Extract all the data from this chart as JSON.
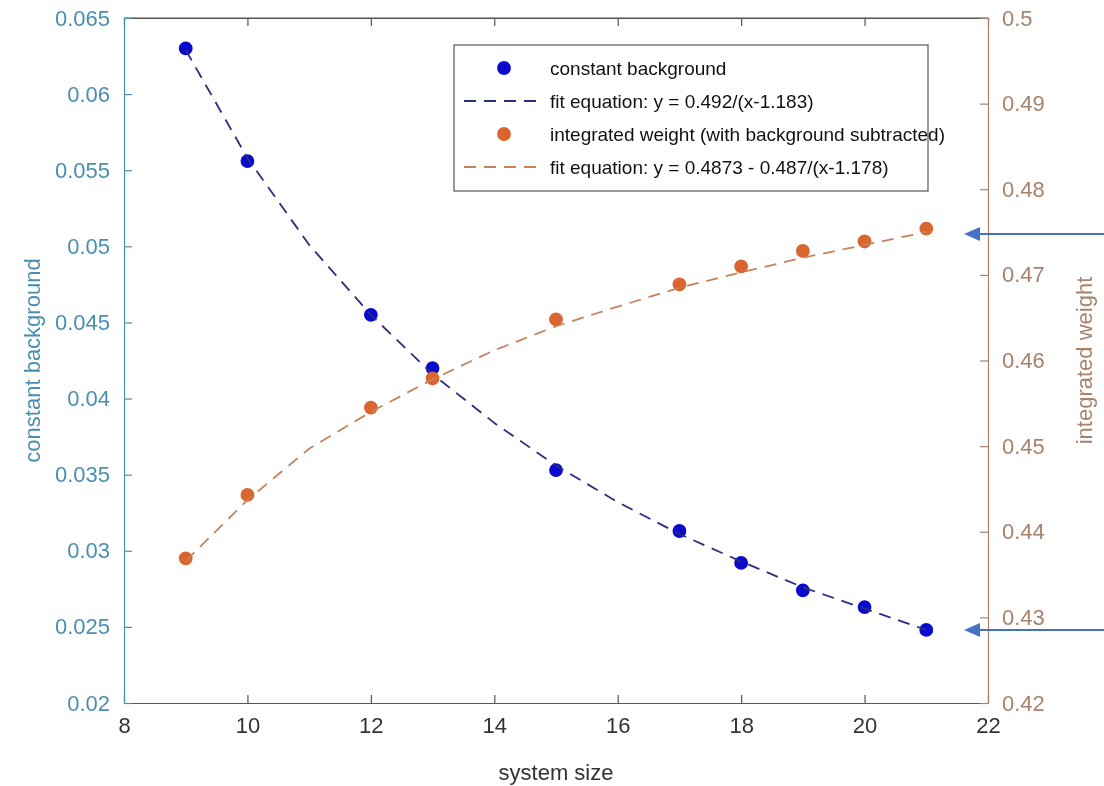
{
  "chart_data": {
    "type": "scatter",
    "xlabel": "system size",
    "ylabel": "constant background",
    "y2label": "integrated weight",
    "xlim": [
      8,
      22
    ],
    "xticks": [
      8,
      10,
      12,
      14,
      16,
      18,
      20,
      22
    ],
    "ylim": [
      0.02,
      0.065
    ],
    "yticks": [
      0.02,
      0.025,
      0.03,
      0.035,
      0.04,
      0.045,
      0.05,
      0.055,
      0.06,
      0.065
    ],
    "y2lim": [
      0.42,
      0.5
    ],
    "y2ticks": [
      0.42,
      0.43,
      0.44,
      0.45,
      0.46,
      0.47,
      0.48,
      0.49,
      0.5
    ],
    "grid": false,
    "legend": "top right",
    "series": [
      {
        "name": "constant background",
        "marker": "circle",
        "color": "#0a0acc",
        "x": [
          9,
          10,
          12,
          13,
          15,
          17,
          18,
          19,
          20,
          21
        ],
        "values": [
          0.063,
          0.0556,
          0.0455,
          0.042,
          0.0353,
          0.0313,
          0.0292,
          0.0274,
          0.0263,
          0.0248
        ]
      },
      {
        "name": "fit equation: y = 0.492/(x-1.183)",
        "type": "line",
        "line_style": "dashed",
        "color": "#27307f",
        "x": [
          9,
          10,
          11,
          12,
          13,
          14,
          15,
          16,
          17,
          18,
          19,
          20,
          21
        ],
        "values": [
          0.0629,
          0.0558,
          0.0501,
          0.0455,
          0.0416,
          0.0384,
          0.0356,
          0.0332,
          0.0311,
          0.0293,
          0.0276,
          0.0262,
          0.0248
        ]
      },
      {
        "name": "integrated weight (with background subtracted)",
        "marker": "circle",
        "axis": "y2",
        "color": "#d9652f",
        "x": [
          9,
          10,
          12,
          13,
          15,
          17,
          18,
          19,
          20,
          21
        ],
        "values": [
          0.4369,
          0.4443,
          0.4545,
          0.4579,
          0.4648,
          0.4689,
          0.471,
          0.4728,
          0.4739,
          0.4754
        ]
      },
      {
        "name": "fit equation: y = 0.4873 - 0.487/(x-1.178)",
        "type": "line",
        "line_style": "dashed",
        "axis": "y2",
        "color": "#c4835c",
        "x": [
          9,
          10,
          11,
          12,
          13,
          14,
          15,
          16,
          17,
          18,
          19,
          20,
          21
        ],
        "values": [
          0.4366,
          0.4437,
          0.4497,
          0.454,
          0.4578,
          0.4612,
          0.464,
          0.4663,
          0.4685,
          0.4703,
          0.472,
          0.4735,
          0.475
        ]
      }
    ]
  }
}
